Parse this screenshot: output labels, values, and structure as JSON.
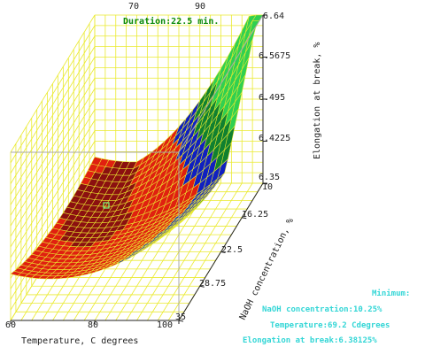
{
  "chart_data": {
    "type": "surface3d",
    "duration_label": "Duration:22.5 min.",
    "x_axis": {
      "label": "Temperature, C degrees",
      "ticks": [
        "60",
        "80",
        "100"
      ],
      "top_ticks": [
        "70",
        "90"
      ],
      "range": [
        60,
        100
      ]
    },
    "y_axis": {
      "label": "NaOH concentration, %",
      "ticks": [
        "10",
        "16.25",
        "22.5",
        "28.75",
        "35"
      ],
      "range": [
        10,
        35
      ]
    },
    "z_axis": {
      "label": "Elongation at break, %",
      "ticks": [
        "6.64",
        "6.5675",
        "6.495",
        "6.4225",
        "6.35"
      ],
      "range": [
        6.35,
        6.64
      ]
    },
    "color_bands": [
      "#8b1010",
      "#e02010",
      "#1020c0",
      "#108030",
      "#30d050"
    ],
    "grid_color": "#eaea30",
    "minimum": {
      "title": "Minimum:",
      "naoh": "NaOH concentration:10.25%",
      "temperature": "Temperature:69.2 Cdegrees",
      "elongation": "Elongation at break:6.38125%"
    }
  }
}
